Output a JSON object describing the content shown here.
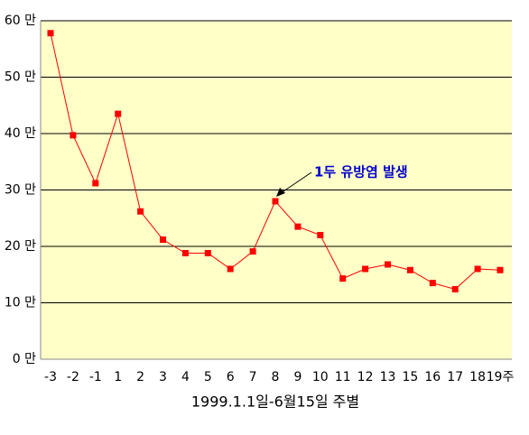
{
  "chart_data": {
    "type": "line",
    "xlabel": "1999.1.1일-6월15일 주별",
    "annotation": "1두 유방염 발생",
    "categories": [
      "-3",
      "-2",
      "-1",
      "1",
      "2",
      "3",
      "4",
      "5",
      "6",
      "7",
      "8",
      "9",
      "10",
      "11",
      "12",
      "13",
      "15",
      "16",
      "17",
      "18",
      "19주"
    ],
    "values": [
      57.8,
      39.7,
      31.2,
      43.5,
      26.2,
      21.2,
      18.8,
      18.8,
      16.0,
      19.1,
      28.0,
      23.5,
      22.0,
      14.3,
      16.0,
      16.8,
      15.8,
      13.5,
      12.4,
      16.0,
      15.8
    ],
    "color": "#ff0000",
    "ylim": [
      0,
      60
    ],
    "yticks": [
      {
        "value": 0,
        "label": "0 만"
      },
      {
        "value": 10,
        "label": "10 만"
      },
      {
        "value": 20,
        "label": "20 만"
      },
      {
        "value": 30,
        "label": "30 만"
      },
      {
        "value": 40,
        "label": "40 만"
      },
      {
        "value": 50,
        "label": "50 만"
      },
      {
        "value": 60,
        "label": "60 만"
      }
    ],
    "grid": true
  }
}
